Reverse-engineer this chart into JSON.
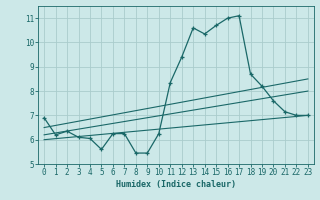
{
  "xlabel": "Humidex (Indice chaleur)",
  "ylabel": "",
  "xlim": [
    -0.5,
    23.5
  ],
  "ylim": [
    5,
    11.5
  ],
  "yticks": [
    5,
    6,
    7,
    8,
    9,
    10,
    11
  ],
  "xticks": [
    0,
    1,
    2,
    3,
    4,
    5,
    6,
    7,
    8,
    9,
    10,
    11,
    12,
    13,
    14,
    15,
    16,
    17,
    18,
    19,
    20,
    21,
    22,
    23
  ],
  "bg_color": "#cce8e8",
  "grid_color": "#aacccc",
  "line_color": "#1a6868",
  "line1_x": [
    0,
    1,
    2,
    3,
    4,
    5,
    6,
    7,
    8,
    9,
    10,
    11,
    12,
    13,
    14,
    15,
    16,
    17,
    18,
    19,
    20,
    21,
    22,
    23
  ],
  "line1_y": [
    6.9,
    6.2,
    6.35,
    6.1,
    6.05,
    5.6,
    6.25,
    6.25,
    5.45,
    5.45,
    6.25,
    8.35,
    9.4,
    10.6,
    10.35,
    10.7,
    11.0,
    11.1,
    8.7,
    8.2,
    7.6,
    7.15,
    7.0,
    7.0
  ],
  "line2_x": [
    0,
    23
  ],
  "line2_y": [
    6.5,
    8.5
  ],
  "line3_x": [
    0,
    23
  ],
  "line3_y": [
    6.2,
    8.0
  ],
  "line4_x": [
    0,
    23
  ],
  "line4_y": [
    6.0,
    7.0
  ]
}
